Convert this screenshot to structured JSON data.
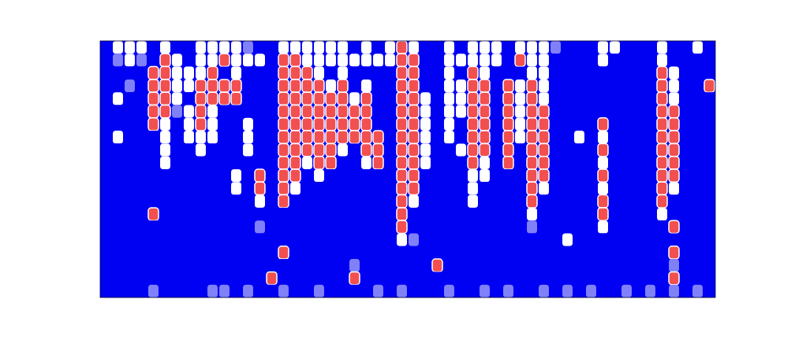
{
  "chart_data": {
    "type": "heatmap",
    "tick_labels": false,
    "grid": false,
    "zlim": [
      0,
      3
    ],
    "cells": [
      [
        0,
        2,
        2,
        2,
        0,
        2,
        0,
        0,
        2,
        2,
        2,
        2,
        1,
        0,
        0,
        2,
        2,
        2,
        2,
        2,
        2,
        0,
        2,
        0,
        2,
        3,
        2,
        0,
        0,
        2,
        0,
        2,
        2,
        2,
        0,
        2,
        2,
        2,
        1,
        0,
        0,
        0,
        2,
        2,
        0,
        0,
        0,
        2,
        0,
        0,
        2,
        0
      ],
      [
        0,
        1,
        2,
        1,
        0,
        3,
        2,
        0,
        2,
        2,
        3,
        2,
        2,
        2,
        0,
        3,
        3,
        2,
        2,
        2,
        2,
        2,
        2,
        2,
        2,
        3,
        3,
        0,
        0,
        2,
        2,
        2,
        2,
        2,
        0,
        3,
        2,
        2,
        0,
        0,
        0,
        0,
        2,
        0,
        0,
        0,
        0,
        2,
        0,
        0,
        0,
        0
      ],
      [
        0,
        0,
        0,
        0,
        3,
        3,
        2,
        2,
        2,
        3,
        0,
        2,
        0,
        0,
        0,
        3,
        3,
        3,
        2,
        0,
        2,
        0,
        0,
        0,
        0,
        3,
        3,
        0,
        0,
        2,
        0,
        3,
        2,
        0,
        0,
        0,
        2,
        2,
        0,
        0,
        0,
        0,
        0,
        0,
        0,
        0,
        0,
        3,
        2,
        0,
        0,
        0
      ],
      [
        0,
        0,
        1,
        0,
        3,
        3,
        2,
        2,
        3,
        3,
        3,
        3,
        0,
        0,
        0,
        3,
        3,
        3,
        3,
        2,
        3,
        0,
        2,
        0,
        0,
        3,
        3,
        0,
        0,
        2,
        2,
        3,
        3,
        0,
        3,
        2,
        3,
        2,
        0,
        0,
        0,
        0,
        0,
        0,
        0,
        0,
        0,
        3,
        2,
        0,
        0,
        3
      ],
      [
        0,
        2,
        0,
        0,
        3,
        3,
        2,
        0,
        3,
        3,
        3,
        3,
        0,
        0,
        0,
        3,
        3,
        3,
        3,
        3,
        3,
        2,
        3,
        0,
        0,
        3,
        3,
        2,
        0,
        2,
        2,
        3,
        3,
        0,
        3,
        2,
        3,
        2,
        0,
        0,
        0,
        0,
        0,
        0,
        0,
        0,
        0,
        3,
        2,
        0,
        0,
        0
      ],
      [
        0,
        0,
        0,
        0,
        3,
        3,
        1,
        2,
        3,
        2,
        0,
        0,
        0,
        0,
        0,
        3,
        3,
        3,
        3,
        3,
        3,
        3,
        3,
        0,
        0,
        3,
        3,
        2,
        0,
        2,
        2,
        3,
        3,
        0,
        3,
        2,
        3,
        3,
        0,
        0,
        0,
        0,
        0,
        0,
        0,
        0,
        0,
        3,
        3,
        0,
        0,
        0
      ],
      [
        0,
        0,
        0,
        0,
        3,
        2,
        0,
        2,
        3,
        2,
        0,
        0,
        2,
        0,
        0,
        3,
        3,
        3,
        3,
        3,
        3,
        3,
        3,
        0,
        0,
        3,
        3,
        2,
        0,
        2,
        0,
        3,
        3,
        0,
        3,
        2,
        3,
        3,
        0,
        0,
        0,
        0,
        3,
        0,
        0,
        0,
        0,
        3,
        3,
        0,
        0,
        0
      ],
      [
        0,
        2,
        0,
        0,
        0,
        2,
        0,
        2,
        2,
        2,
        0,
        0,
        2,
        0,
        0,
        3,
        3,
        3,
        3,
        3,
        3,
        3,
        3,
        3,
        0,
        3,
        3,
        2,
        0,
        2,
        0,
        3,
        3,
        0,
        3,
        2,
        3,
        3,
        0,
        0,
        2,
        0,
        2,
        0,
        0,
        0,
        0,
        3,
        3,
        0,
        0,
        0
      ],
      [
        0,
        0,
        0,
        0,
        0,
        2,
        0,
        0,
        2,
        0,
        0,
        0,
        2,
        0,
        0,
        3,
        3,
        3,
        3,
        3,
        2,
        0,
        3,
        3,
        0,
        3,
        3,
        2,
        0,
        0,
        2,
        3,
        3,
        0,
        3,
        0,
        3,
        3,
        0,
        0,
        0,
        0,
        3,
        0,
        0,
        0,
        0,
        3,
        3,
        0,
        0,
        0
      ],
      [
        0,
        0,
        0,
        0,
        0,
        2,
        0,
        0,
        0,
        0,
        0,
        0,
        0,
        0,
        0,
        3,
        3,
        2,
        3,
        3,
        0,
        0,
        2,
        3,
        0,
        3,
        3,
        2,
        0,
        0,
        0,
        3,
        2,
        0,
        3,
        0,
        3,
        3,
        0,
        0,
        0,
        0,
        2,
        0,
        0,
        0,
        0,
        3,
        3,
        0,
        0,
        0
      ],
      [
        0,
        0,
        0,
        0,
        0,
        0,
        0,
        0,
        0,
        0,
        0,
        2,
        0,
        3,
        0,
        3,
        3,
        0,
        2,
        0,
        0,
        0,
        0,
        0,
        0,
        3,
        3,
        0,
        0,
        0,
        0,
        2,
        2,
        0,
        0,
        0,
        3,
        3,
        0,
        0,
        0,
        0,
        3,
        0,
        0,
        0,
        0,
        3,
        3,
        0,
        0,
        0
      ],
      [
        0,
        0,
        0,
        0,
        0,
        0,
        0,
        0,
        0,
        0,
        0,
        2,
        0,
        3,
        0,
        3,
        2,
        0,
        0,
        0,
        0,
        0,
        0,
        0,
        0,
        3,
        3,
        0,
        0,
        0,
        0,
        2,
        0,
        0,
        0,
        0,
        3,
        2,
        0,
        0,
        0,
        0,
        2,
        0,
        0,
        0,
        0,
        3,
        2,
        0,
        0,
        0
      ],
      [
        0,
        0,
        0,
        0,
        0,
        0,
        0,
        0,
        0,
        0,
        0,
        0,
        0,
        2,
        0,
        3,
        0,
        0,
        0,
        0,
        0,
        0,
        0,
        0,
        0,
        3,
        2,
        0,
        0,
        0,
        0,
        2,
        0,
        0,
        0,
        0,
        3,
        0,
        0,
        0,
        0,
        0,
        3,
        0,
        0,
        0,
        0,
        3,
        0,
        0,
        0,
        0
      ],
      [
        0,
        0,
        0,
        0,
        3,
        0,
        0,
        0,
        0,
        0,
        0,
        0,
        0,
        0,
        0,
        0,
        0,
        0,
        0,
        0,
        0,
        0,
        0,
        0,
        0,
        3,
        0,
        0,
        0,
        0,
        0,
        0,
        0,
        0,
        0,
        0,
        2,
        0,
        0,
        0,
        0,
        0,
        3,
        0,
        0,
        0,
        0,
        2,
        0,
        0,
        0,
        0
      ],
      [
        0,
        0,
        0,
        0,
        0,
        0,
        0,
        0,
        0,
        0,
        0,
        0,
        0,
        1,
        0,
        0,
        0,
        0,
        0,
        0,
        0,
        0,
        0,
        0,
        0,
        3,
        0,
        0,
        0,
        0,
        0,
        0,
        0,
        0,
        0,
        0,
        1,
        0,
        0,
        0,
        0,
        0,
        2,
        0,
        0,
        0,
        0,
        0,
        3,
        0,
        0,
        0
      ],
      [
        0,
        0,
        0,
        0,
        0,
        0,
        0,
        0,
        0,
        0,
        0,
        0,
        0,
        0,
        0,
        0,
        0,
        0,
        0,
        0,
        0,
        0,
        0,
        0,
        0,
        2,
        1,
        0,
        0,
        0,
        0,
        0,
        0,
        0,
        0,
        0,
        0,
        0,
        0,
        2,
        0,
        0,
        0,
        0,
        0,
        0,
        0,
        0,
        0,
        0,
        0,
        0
      ],
      [
        0,
        0,
        0,
        0,
        0,
        0,
        0,
        0,
        0,
        0,
        0,
        0,
        0,
        0,
        0,
        3,
        0,
        0,
        0,
        0,
        0,
        0,
        0,
        0,
        0,
        0,
        0,
        0,
        0,
        0,
        0,
        0,
        0,
        0,
        0,
        0,
        0,
        0,
        0,
        0,
        0,
        0,
        0,
        0,
        0,
        0,
        0,
        0,
        3,
        0,
        0,
        0
      ],
      [
        0,
        0,
        0,
        0,
        0,
        0,
        0,
        0,
        0,
        0,
        0,
        0,
        0,
        0,
        0,
        0,
        0,
        0,
        0,
        0,
        0,
        1,
        0,
        0,
        0,
        0,
        0,
        0,
        3,
        0,
        0,
        0,
        0,
        0,
        0,
        0,
        0,
        0,
        0,
        0,
        0,
        0,
        0,
        0,
        0,
        0,
        0,
        0,
        1,
        0,
        0,
        0
      ],
      [
        0,
        0,
        0,
        0,
        0,
        0,
        0,
        0,
        0,
        0,
        0,
        0,
        0,
        0,
        3,
        0,
        0,
        0,
        0,
        0,
        0,
        3,
        0,
        0,
        0,
        0,
        0,
        0,
        0,
        0,
        0,
        0,
        0,
        0,
        0,
        0,
        0,
        0,
        0,
        0,
        0,
        0,
        0,
        0,
        0,
        0,
        0,
        0,
        3,
        0,
        0,
        0
      ],
      [
        0,
        0,
        0,
        0,
        1,
        0,
        0,
        0,
        0,
        1,
        1,
        0,
        1,
        0,
        0,
        1,
        0,
        0,
        1,
        0,
        0,
        0,
        0,
        1,
        0,
        1,
        0,
        0,
        0,
        1,
        0,
        0,
        1,
        0,
        1,
        0,
        0,
        1,
        0,
        1,
        0,
        1,
        0,
        0,
        1,
        0,
        1,
        0,
        1,
        0,
        1,
        0
      ]
    ]
  }
}
